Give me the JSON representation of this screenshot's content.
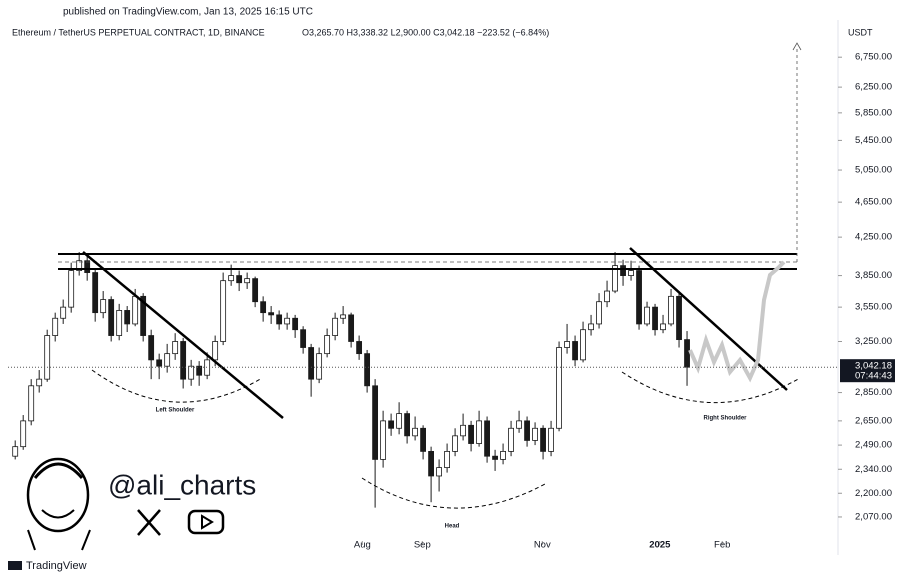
{
  "header": {
    "published": "published on TradingView.com, Jan 13, 2025 16:15 UTC"
  },
  "chart_data": {
    "type": "candlestick",
    "title": "Ethereum / TetherUS PERPETUAL CONTRACT, 1D, BINANCE",
    "ohlc_label": "O3,265.70  H3,338.32  L2,900.00  C3,042.18  −223.52 (−6.84%)",
    "y_axis_label": "USDT",
    "up_color": "#ffffff",
    "down_color": "#1a1a1a",
    "candles": [
      [
        2420,
        2520,
        2400,
        2480
      ],
      [
        2480,
        2690,
        2460,
        2650
      ],
      [
        2650,
        2950,
        2620,
        2900
      ],
      [
        2900,
        3020,
        2850,
        2950
      ],
      [
        2950,
        3350,
        2930,
        3300
      ],
      [
        3300,
        3500,
        3250,
        3450
      ],
      [
        3450,
        3620,
        3400,
        3550
      ],
      [
        3550,
        3980,
        3500,
        3900
      ],
      [
        3900,
        4090,
        3850,
        4000
      ],
      [
        4000,
        4060,
        3800,
        3880
      ],
      [
        3880,
        3920,
        3420,
        3500
      ],
      [
        3500,
        3700,
        3450,
        3620
      ],
      [
        3620,
        3650,
        3250,
        3300
      ],
      [
        3300,
        3580,
        3260,
        3520
      ],
      [
        3520,
        3560,
        3330,
        3400
      ],
      [
        3400,
        3720,
        3380,
        3650
      ],
      [
        3650,
        3680,
        3250,
        3300
      ],
      [
        3300,
        3350,
        2950,
        3100
      ],
      [
        3100,
        3150,
        2950,
        3050
      ],
      [
        3050,
        3230,
        3000,
        3150
      ],
      [
        3150,
        3320,
        3100,
        3250
      ],
      [
        3250,
        3280,
        2880,
        2950
      ],
      [
        2950,
        3100,
        2900,
        3050
      ],
      [
        3050,
        3090,
        2900,
        2980
      ],
      [
        2980,
        3160,
        2950,
        3100
      ],
      [
        3100,
        3300,
        3050,
        3250
      ],
      [
        3250,
        3880,
        3220,
        3800
      ],
      [
        3800,
        3960,
        3750,
        3850
      ],
      [
        3850,
        3900,
        3700,
        3780
      ],
      [
        3780,
        3880,
        3720,
        3820
      ],
      [
        3820,
        3840,
        3550,
        3600
      ],
      [
        3600,
        3650,
        3420,
        3500
      ],
      [
        3500,
        3560,
        3400,
        3480
      ],
      [
        3480,
        3520,
        3350,
        3400
      ],
      [
        3400,
        3500,
        3350,
        3450
      ],
      [
        3450,
        3480,
        3280,
        3350
      ],
      [
        3350,
        3380,
        3150,
        3200
      ],
      [
        3200,
        3230,
        2820,
        2950
      ],
      [
        2950,
        3200,
        2920,
        3150
      ],
      [
        3150,
        3360,
        3120,
        3300
      ],
      [
        3300,
        3500,
        3260,
        3450
      ],
      [
        3450,
        3560,
        3400,
        3480
      ],
      [
        3480,
        3500,
        3200,
        3250
      ],
      [
        3250,
        3300,
        3100,
        3150
      ],
      [
        3150,
        3180,
        2850,
        2900
      ],
      [
        2900,
        2950,
        2120,
        2400
      ],
      [
        2400,
        2720,
        2350,
        2650
      ],
      [
        2650,
        2700,
        2550,
        2600
      ],
      [
        2600,
        2780,
        2560,
        2700
      ],
      [
        2700,
        2720,
        2500,
        2550
      ],
      [
        2550,
        2680,
        2520,
        2600
      ],
      [
        2600,
        2620,
        2400,
        2450
      ],
      [
        2450,
        2480,
        2150,
        2300
      ],
      [
        2300,
        2400,
        2210,
        2350
      ],
      [
        2350,
        2500,
        2320,
        2450
      ],
      [
        2450,
        2600,
        2420,
        2550
      ],
      [
        2550,
        2700,
        2520,
        2620
      ],
      [
        2620,
        2650,
        2450,
        2500
      ],
      [
        2500,
        2720,
        2480,
        2650
      ],
      [
        2650,
        2680,
        2380,
        2420
      ],
      [
        2420,
        2460,
        2330,
        2400
      ],
      [
        2400,
        2500,
        2370,
        2450
      ],
      [
        2450,
        2650,
        2420,
        2600
      ],
      [
        2600,
        2720,
        2570,
        2650
      ],
      [
        2650,
        2680,
        2480,
        2520
      ],
      [
        2520,
        2640,
        2490,
        2600
      ],
      [
        2600,
        2620,
        2400,
        2450
      ],
      [
        2450,
        2650,
        2420,
        2600
      ],
      [
        2600,
        3250,
        2580,
        3200
      ],
      [
        3200,
        3400,
        3150,
        3250
      ],
      [
        3250,
        3300,
        3050,
        3100
      ],
      [
        3100,
        3420,
        3080,
        3350
      ],
      [
        3350,
        3480,
        3300,
        3400
      ],
      [
        3400,
        3680,
        3360,
        3600
      ],
      [
        3600,
        3800,
        3550,
        3700
      ],
      [
        3700,
        4090,
        3680,
        3950
      ],
      [
        3950,
        4010,
        3750,
        3850
      ],
      [
        3850,
        4000,
        3800,
        3900
      ],
      [
        3900,
        3950,
        3350,
        3400
      ],
      [
        3400,
        3600,
        3380,
        3550
      ],
      [
        3550,
        3580,
        3300,
        3350
      ],
      [
        3350,
        3480,
        3320,
        3400
      ],
      [
        3400,
        3720,
        3380,
        3650
      ],
      [
        3650,
        3700,
        3200,
        3265.7
      ],
      [
        3265.7,
        3338.32,
        2900,
        3042.18
      ]
    ],
    "xlim": [
      -0.9,
      102.5
    ],
    "xticks": [
      {
        "value": 43.4,
        "label": "Aug"
      },
      {
        "value": 50.9,
        "label": "Sep"
      },
      {
        "value": 65.9,
        "label": "Nov"
      },
      {
        "value": 80.6,
        "label": "2025"
      },
      {
        "value": 88.4,
        "label": "Feb"
      }
    ],
    "ylim": [
      1926,
      7055
    ],
    "yticks": [
      {
        "value": 6750,
        "label": "6,750.00"
      },
      {
        "value": 6250,
        "label": "6,250.00"
      },
      {
        "value": 5850,
        "label": "5,850.00"
      },
      {
        "value": 5450,
        "label": "5,450.00"
      },
      {
        "value": 5050,
        "label": "5,050.00"
      },
      {
        "value": 4650,
        "label": "4,650.00"
      },
      {
        "value": 4250,
        "label": "4,250.00"
      },
      {
        "value": 3850,
        "label": "3,850.00"
      },
      {
        "value": 3550,
        "label": "3,550.00"
      },
      {
        "value": 3250,
        "label": "3,250.00"
      },
      {
        "value": 2850,
        "label": "2,850.00"
      },
      {
        "value": 2650,
        "label": "2,650.00"
      },
      {
        "value": 2490,
        "label": "2,490.00"
      },
      {
        "value": 2340,
        "label": "2,340.00"
      },
      {
        "value": 2200,
        "label": "2,200.00"
      },
      {
        "value": 2070,
        "label": "2,070.00"
      }
    ],
    "log_scale": true,
    "grid": false,
    "last_price": {
      "value": 3042.18,
      "label": "3,042.18"
    },
    "countdown": "07:44:43",
    "annotations": [
      "Left Shoulder",
      "Head",
      "Right Shoulder"
    ]
  },
  "watermark": {
    "handle": "@ali_charts"
  },
  "footer": {
    "brand": "TradingView"
  }
}
